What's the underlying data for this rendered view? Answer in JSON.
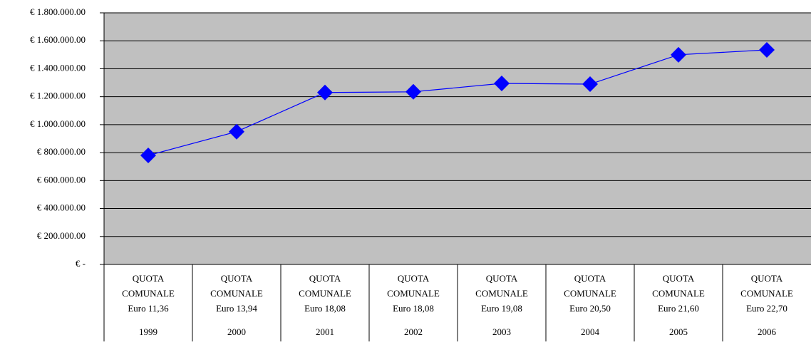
{
  "chart_data": {
    "type": "line",
    "categories": [
      [
        "QUOTA",
        "COMUNALE",
        "Euro 11,36"
      ],
      [
        "QUOTA",
        "COMUNALE",
        "Euro 13,94"
      ],
      [
        "QUOTA",
        "COMUNALE",
        "Euro 18,08"
      ],
      [
        "QUOTA",
        "COMUNALE",
        "Euro 18,08"
      ],
      [
        "QUOTA",
        "COMUNALE",
        "Euro 19,08"
      ],
      [
        "QUOTA",
        "COMUNALE",
        "Euro 20,50"
      ],
      [
        "QUOTA",
        "COMUNALE",
        "Euro 21,60"
      ],
      [
        "QUOTA",
        "COMUNALE",
        "Euro 22,70"
      ]
    ],
    "years": [
      "1999",
      "2000",
      "2001",
      "2002",
      "2003",
      "2004",
      "2005",
      "2006"
    ],
    "values": [
      780000,
      950000,
      1230000,
      1235000,
      1295000,
      1290000,
      1500000,
      1535000
    ],
    "color": "#0000ff",
    "ylim": [
      0,
      1800000
    ],
    "yticks": [
      {
        "value": 0,
        "label": "€ -"
      },
      {
        "value": 200000,
        "label": "€ 200.000.00"
      },
      {
        "value": 400000,
        "label": "€ 400.000.00"
      },
      {
        "value": 600000,
        "label": "€ 600.000.00"
      },
      {
        "value": 800000,
        "label": "€ 800.000.00"
      },
      {
        "value": 1000000,
        "label": "€ 1.000.000.00"
      },
      {
        "value": 1200000,
        "label": "€ 1.200.000.00"
      },
      {
        "value": 1400000,
        "label": "€ 1.400.000.00"
      },
      {
        "value": 1600000,
        "label": "€ 1.600.000.00"
      },
      {
        "value": 1800000,
        "label": "€ 1.800.000.00"
      }
    ],
    "grid": true
  }
}
